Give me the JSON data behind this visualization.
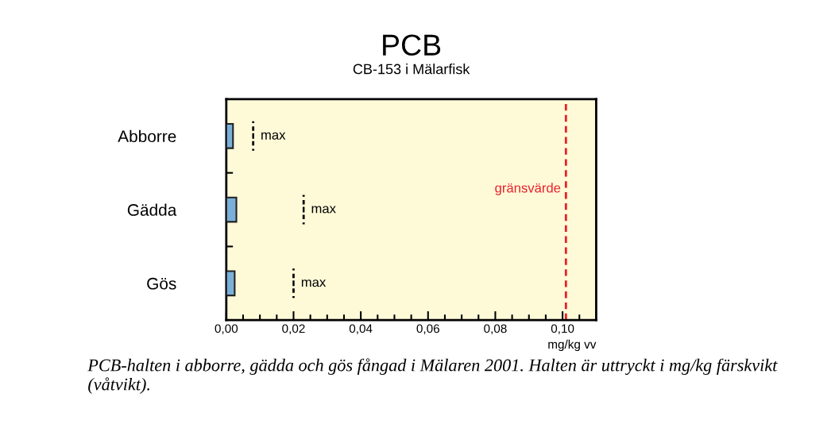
{
  "chart_data": {
    "type": "bar",
    "orientation": "horizontal",
    "title": "PCB",
    "subtitle": "CB-153 i Mälarfisk",
    "xlabel": "mg/kg vv",
    "categories": [
      "Abborre",
      "Gädda",
      "Gös"
    ],
    "series": [
      {
        "color": "#7ab0d8",
        "values": [
          0.002,
          0.003,
          0.0025
        ]
      },
      {
        "type": "scatter",
        "name": "max",
        "color": "#000000",
        "line_style": "dashed",
        "values": [
          0.008,
          0.023,
          0.02
        ]
      }
    ],
    "xlim": [
      0,
      0.11
    ],
    "xticks": [
      {
        "value": 0,
        "label": "0,00"
      },
      {
        "value": 0.005,
        "label": null
      },
      {
        "value": 0.01,
        "label": null
      },
      {
        "value": 0.015,
        "label": null
      },
      {
        "value": 0.02,
        "label": "0,02"
      },
      {
        "value": 0.025,
        "label": null
      },
      {
        "value": 0.03,
        "label": null
      },
      {
        "value": 0.035,
        "label": null
      },
      {
        "value": 0.04,
        "label": "0,04"
      },
      {
        "value": 0.045,
        "label": null
      },
      {
        "value": 0.05,
        "label": null
      },
      {
        "value": 0.055,
        "label": null
      },
      {
        "value": 0.06,
        "label": "0,06"
      },
      {
        "value": 0.065,
        "label": null
      },
      {
        "value": 0.07,
        "label": null
      },
      {
        "value": 0.075,
        "label": null
      },
      {
        "value": 0.08,
        "label": "0,08"
      },
      {
        "value": 0.085,
        "label": null
      },
      {
        "value": 0.09,
        "label": null
      },
      {
        "value": 0.095,
        "label": null
      },
      {
        "value": 0.1,
        "label": "0,10"
      },
      {
        "value": 0.105,
        "label": null
      }
    ],
    "ref_lines": [
      {
        "axis": "x",
        "value": 0.101,
        "label": "gränsvärde",
        "color": "#e8202a",
        "line_style": "dashed"
      }
    ],
    "annotations": [
      "PCB-halten i abborre, gädda och gös fångad i Mälaren 2001. Halten är uttryckt i mg/kg färskvikt (våtvikt)."
    ],
    "grid": false
  }
}
